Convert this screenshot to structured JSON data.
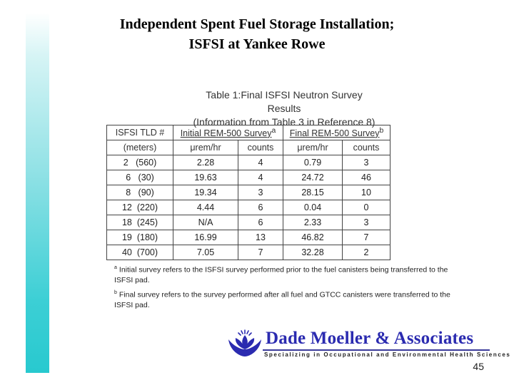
{
  "slide": {
    "title_line1": "Independent Spent Fuel Storage Installation;",
    "title_line2": "ISFSI at Yankee Rowe",
    "page_number": "45"
  },
  "table": {
    "caption_line1": "Table 1:Final ISFSI Neutron Survey Results",
    "caption_line2": "(Information from Table 3 in Reference 8)",
    "id_header_line1": "ISFSI TLD #",
    "id_header_line2": "(meters)",
    "initial_header": "Initial REM-500 Survey",
    "initial_mark": "a",
    "final_header": "Final REM-500 Survey",
    "final_mark": "b",
    "unit_rate": "μrem/hr",
    "unit_counts": "counts",
    "rows": [
      {
        "id": "2   (560)",
        "init_rate": "2.28",
        "init_counts": "4",
        "final_rate": "0.79",
        "final_counts": "3"
      },
      {
        "id": "6   (30)",
        "init_rate": "19.63",
        "init_counts": "4",
        "final_rate": "24.72",
        "final_counts": "46"
      },
      {
        "id": "8   (90)",
        "init_rate": "19.34",
        "init_counts": "3",
        "final_rate": "28.15",
        "final_counts": "10"
      },
      {
        "id": "12  (220)",
        "init_rate": "4.44",
        "init_counts": "6",
        "final_rate": "0.04",
        "final_counts": "0"
      },
      {
        "id": "18  (245)",
        "init_rate": "N/A",
        "init_counts": "6",
        "final_rate": "2.33",
        "final_counts": "3"
      },
      {
        "id": "19  (180)",
        "init_rate": "16.99",
        "init_counts": "13",
        "final_rate": "46.82",
        "final_counts": "7"
      },
      {
        "id": "40  (700)",
        "init_rate": "7.05",
        "init_counts": "7",
        "final_rate": "32.28",
        "final_counts": "2"
      }
    ]
  },
  "footnotes": {
    "a_mark": "a",
    "a_text": "Initial survey refers to the ISFSI survey performed prior to the fuel canisters being transferred to the ISFSI pad.",
    "b_mark": "b",
    "b_text": "Final survey refers to the survey performed after all fuel and GTCC canisters were transferred to the ISFSI pad."
  },
  "logo": {
    "name": "Dade Moeller & Associates",
    "tagline": "Specializing in Occupational and Environmental Health Sciences",
    "icon": "flower-logo-icon"
  },
  "colors": {
    "sidebar_accent": "#28c9cf",
    "logo_blue": "#2b2bb0"
  }
}
